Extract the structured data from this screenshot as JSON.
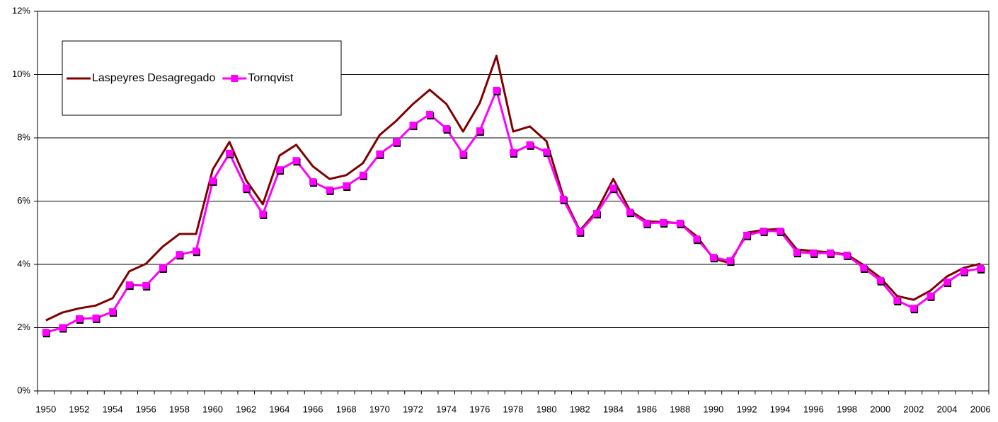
{
  "chart_data": {
    "type": "line",
    "categories": [
      "1950",
      null,
      "1952",
      null,
      "1954",
      null,
      "1956",
      null,
      "1958",
      null,
      "1960",
      null,
      "1962",
      null,
      "1964",
      null,
      "1966",
      null,
      "1968",
      null,
      "1970",
      null,
      "1972",
      null,
      "1974",
      null,
      "1976",
      null,
      "1978",
      null,
      "1980",
      null,
      "1982",
      null,
      "1984",
      null,
      "1986",
      null,
      "1988",
      null,
      "1990",
      null,
      "1992",
      null,
      "1994",
      null,
      "1996",
      null,
      "1998",
      null,
      "2000",
      null,
      "2002",
      null,
      "2004",
      null,
      "2006"
    ],
    "series": [
      {
        "name": "Laspeyres Desagregado",
        "color": "#800000",
        "marker": false,
        "values": [
          2.23,
          2.48,
          2.61,
          2.7,
          2.93,
          3.78,
          4.02,
          4.56,
          4.96,
          4.96,
          7.0,
          7.87,
          6.66,
          5.9,
          7.44,
          7.78,
          7.1,
          6.7,
          6.82,
          7.2,
          8.09,
          8.54,
          9.07,
          9.52,
          9.07,
          8.2,
          9.1,
          10.59,
          8.2,
          8.36,
          7.89,
          6.15,
          5.07,
          5.68,
          6.7,
          5.7,
          5.36,
          5.34,
          5.3,
          4.89,
          4.18,
          4.04,
          5.0,
          5.09,
          5.12,
          4.47,
          4.42,
          4.38,
          4.31,
          3.98,
          3.58,
          3.0,
          2.88,
          3.17,
          3.62,
          3.89,
          4.02
        ]
      },
      {
        "name": "Tornqvist",
        "color": "#ff00ff",
        "marker": true,
        "values": [
          1.85,
          2.0,
          2.28,
          2.3,
          2.5,
          3.35,
          3.33,
          3.89,
          4.31,
          4.42,
          6.64,
          7.51,
          6.41,
          5.59,
          6.99,
          7.28,
          6.61,
          6.35,
          6.48,
          6.82,
          7.49,
          7.87,
          8.4,
          8.74,
          8.29,
          7.49,
          8.22,
          9.5,
          7.53,
          7.78,
          7.55,
          6.06,
          5.03,
          5.61,
          6.41,
          5.65,
          5.3,
          5.32,
          5.3,
          4.8,
          4.22,
          4.11,
          4.92,
          5.05,
          5.05,
          4.38,
          4.36,
          4.36,
          4.29,
          3.89,
          3.49,
          2.86,
          2.61,
          3.0,
          3.44,
          3.78,
          3.87
        ]
      }
    ],
    "ylim": [
      0,
      12
    ],
    "yticks": [
      {
        "value": 0,
        "label": "0%"
      },
      {
        "value": 2,
        "label": "2%"
      },
      {
        "value": 4,
        "label": "4%"
      },
      {
        "value": 6,
        "label": "6%"
      },
      {
        "value": 8,
        "label": "8%"
      },
      {
        "value": 10,
        "label": "10%"
      },
      {
        "value": 12,
        "label": "12%"
      }
    ],
    "grid": true,
    "legend": "top-left"
  }
}
